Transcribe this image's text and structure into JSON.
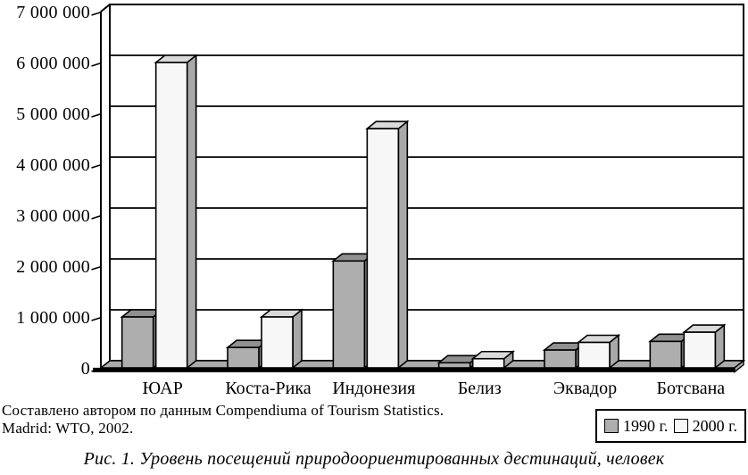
{
  "chart_data": {
    "type": "bar",
    "variant": "3d-column",
    "categories": [
      "ЮАР",
      "Коста-Рика",
      "Индонезия",
      "Белиз",
      "Эквадор",
      "Ботсвана"
    ],
    "series": [
      {
        "name": "1990 г.",
        "values": [
          1000000,
          400000,
          2100000,
          100000,
          350000,
          520000
        ],
        "front_color": "#aeaeae",
        "top_color": "#909090",
        "side_color": "#828282"
      },
      {
        "name": "2000 г.",
        "values": [
          6000000,
          1000000,
          4700000,
          180000,
          500000,
          700000
        ],
        "front_color": "#f7f7f7",
        "top_color": "#d9d9d9",
        "side_color": "#a8a8a8"
      }
    ],
    "ylim": [
      0,
      7000000
    ],
    "y_tick_step": 1000000,
    "y_tick_labels": [
      "0",
      "1 000 000",
      "2 000 000",
      "3 000 000",
      "4 000 000",
      "5 000 000",
      "6 000 000",
      "7 000 000"
    ],
    "grid": true,
    "legend_position": "bottom-right",
    "floor_color": "#ababab",
    "wall_color": "#ffffff",
    "line_color": "#000000"
  },
  "legend": {
    "items": [
      {
        "label": "1990 г.",
        "color": "#aeaeae"
      },
      {
        "label": "2000 г.",
        "color": "#f7f7f7"
      }
    ]
  },
  "source_note": {
    "line1": "Составлено автором по данным Compendiuma of Tourism Statistics.",
    "line2": "Madrid: WTO, 2002."
  },
  "caption": "Рис. 1. Уровень посещений природоориентированных дестинаций, человек"
}
